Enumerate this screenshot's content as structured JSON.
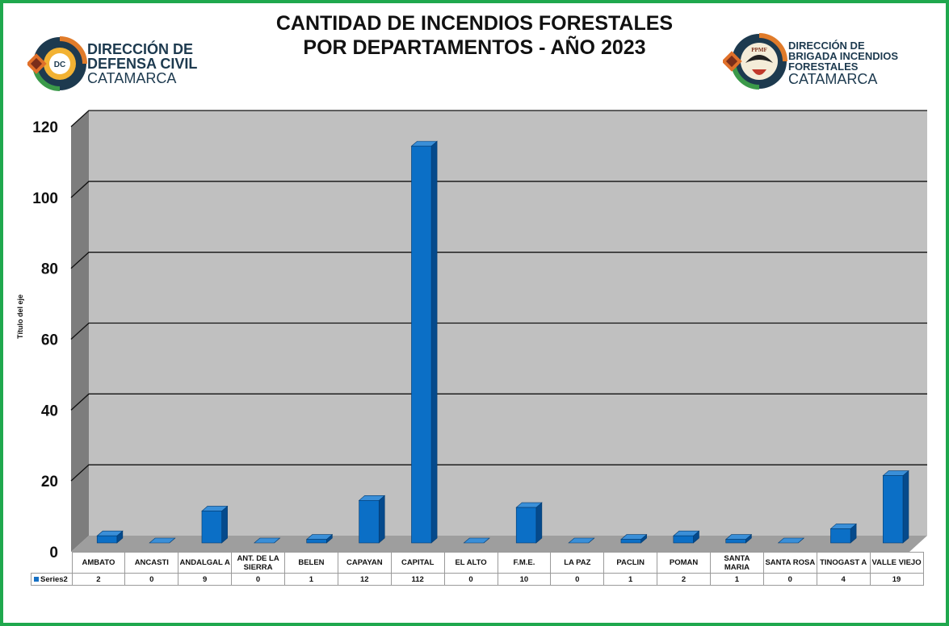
{
  "title_lines": [
    "CANTIDAD DE INCENDIOS FORESTALES",
    "POR DEPARTAMENTOS - AÑO 2023"
  ],
  "logo_left": {
    "line1": "DIRECCIÓN DE",
    "line2": "DEFENSA CIVIL",
    "line3": "CATAMARCA",
    "badge": "DC"
  },
  "logo_right": {
    "line1": "DIRECCIÓN DE",
    "line2": "BRIGADA INCENDIOS",
    "line3": "FORESTALES",
    "line4": "CATAMARCA",
    "badge": "PPMF"
  },
  "colors": {
    "bar_front": "#0b6fc6",
    "bar_side": "#054a8c",
    "bar_top": "#3a8fd8",
    "wall": "#c0c0c0",
    "frame": "#1fa84d"
  },
  "chart_data": {
    "type": "bar",
    "title": "CANTIDAD DE INCENDIOS FORESTALES POR DEPARTAMENTOS - AÑO 2023",
    "ylabel": "Título del eje",
    "ylim": [
      0,
      120
    ],
    "yticks": [
      "0",
      "20",
      "40",
      "60",
      "80",
      "100",
      "120"
    ],
    "grid": true,
    "categories": [
      "AMBATO",
      "ANCASTI",
      "ANDALGALA",
      "ANT. DE LA SIERRA",
      "BELEN",
      "CAPAYAN",
      "CAPITAL",
      "EL ALTO",
      "F.M.E.",
      "LA PAZ",
      "PACLIN",
      "POMAN",
      "SANTA MARIA",
      "SANTA ROSA",
      "TINOGASTA",
      "VALLE VIEJO"
    ],
    "category_labels": [
      "AMBATO",
      "ANCASTI",
      "ANDALGAL A",
      "ANT. DE LA SIERRA",
      "BELEN",
      "CAPAYAN",
      "CAPITAL",
      "EL ALTO",
      "F.M.E.",
      "LA PAZ",
      "PACLIN",
      "POMAN",
      "SANTA MARIA",
      "SANTA ROSA",
      "TINOGAST A",
      "VALLE VIEJO"
    ],
    "series": [
      {
        "name": "Series2",
        "values": [
          2,
          0,
          9,
          0,
          1,
          12,
          112,
          0,
          10,
          0,
          1,
          2,
          1,
          0,
          4,
          19
        ]
      }
    ]
  }
}
